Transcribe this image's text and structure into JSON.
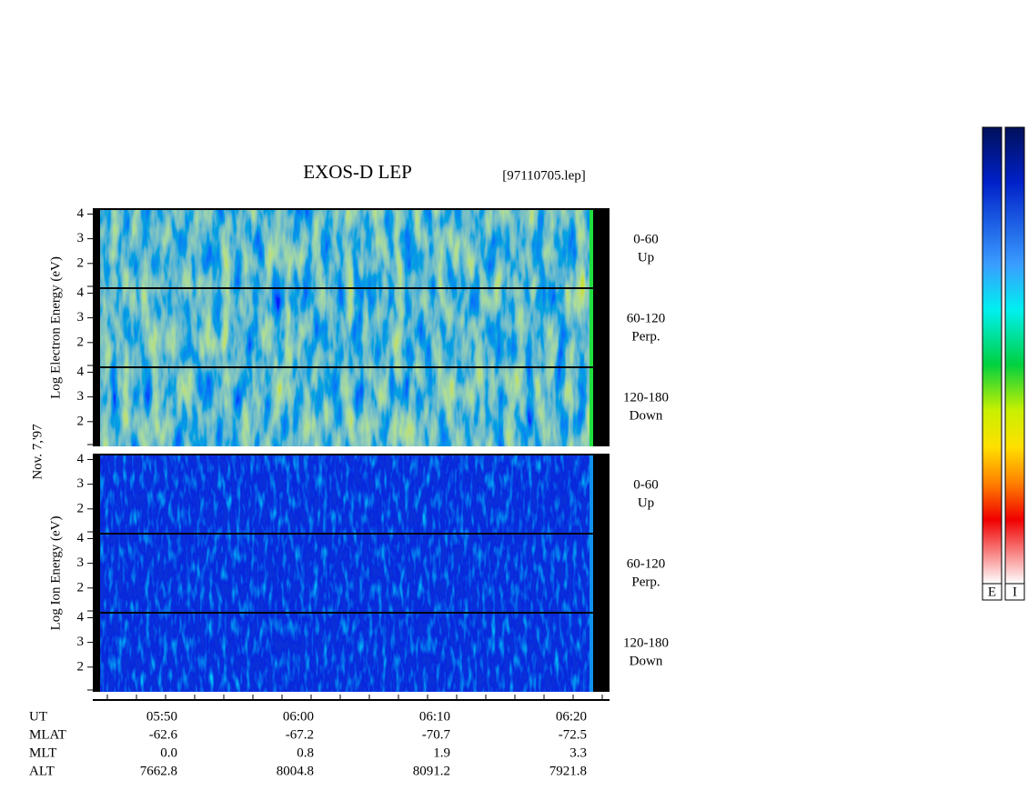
{
  "title": "EXOS-D LEP",
  "file": "[97110705.lep]",
  "date": "Nov. 7,'97",
  "groups": [
    {
      "ylabel": "Log Electron Energy (eV)",
      "ylim": [
        1,
        4.2
      ],
      "panels": [
        {
          "angle": "0-60",
          "direction": "Up",
          "yticks": [
            2,
            3,
            4
          ]
        },
        {
          "angle": "60-120",
          "direction": "Perp.",
          "yticks": [
            2,
            3,
            4
          ]
        },
        {
          "angle": "120-180",
          "direction": "Down",
          "yticks": [
            2,
            3,
            4
          ]
        }
      ]
    },
    {
      "ylabel": "Log Ion Energy (eV)",
      "ylim": [
        1,
        4.2
      ],
      "panels": [
        {
          "angle": "0-60",
          "direction": "Up",
          "yticks": [
            2,
            3,
            4
          ]
        },
        {
          "angle": "60-120",
          "direction": "Perp.",
          "yticks": [
            2,
            3,
            4
          ]
        },
        {
          "angle": "120-180",
          "direction": "Down",
          "yticks": [
            2,
            3,
            4
          ]
        }
      ]
    }
  ],
  "time_axis": {
    "rows": [
      {
        "label": "UT",
        "values": [
          "05:50",
          "06:00",
          "06:10",
          "06:20"
        ]
      },
      {
        "label": "MLAT",
        "values": [
          "-62.6",
          "-67.2",
          "-70.7",
          "-72.5"
        ]
      },
      {
        "label": "MLT",
        "values": [
          "0.0",
          "0.8",
          "1.9",
          "3.3"
        ]
      },
      {
        "label": "ALT",
        "values": [
          "7662.8",
          "8004.8",
          "8091.2",
          "7921.8"
        ]
      }
    ]
  },
  "colorbar": {
    "labels": [
      "E",
      "I"
    ]
  }
}
